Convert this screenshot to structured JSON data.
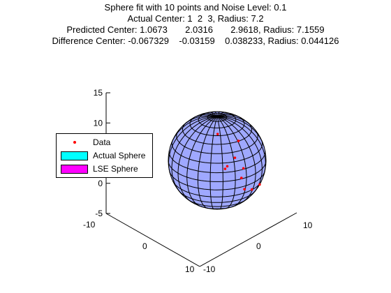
{
  "title_lines": [
    "Sphere fit with 10 points and Noise Level: 0.1",
    "Actual Center: 1  2  3, Radius: 7.2",
    "Predicted Center: 1.0673       2.0316       2.9618, Radius: 7.1559",
    "Difference Center: -0.067329    -0.03159    0.038233, Radius: 0.044126"
  ],
  "chart_data": {
    "type": "scatter",
    "projection": "3d",
    "z_ticks": [
      "-5",
      "0",
      "5",
      "10",
      "15"
    ],
    "z_tick_values": [
      -5,
      0,
      5,
      10,
      15
    ],
    "x_ticks": [
      "-10",
      "0",
      "10"
    ],
    "y_ticks": [
      "10",
      "0",
      "-10"
    ],
    "zlim": [
      -5,
      15
    ],
    "grid": false,
    "legend_position": "left",
    "legend": [
      {
        "label": "Data",
        "marker": "dot",
        "color": "#ff0000"
      },
      {
        "label": "Actual Sphere",
        "marker": "patch",
        "color": "#00ffff"
      },
      {
        "label": "LSE Sphere",
        "marker": "patch",
        "color": "#ff00ff"
      }
    ],
    "sphere_face_color": "#9fa8ff",
    "sphere_edge_color": "#000000",
    "data_point_color": "#ff0000",
    "sphere": {
      "center": [
        1,
        2,
        3
      ],
      "radius": 7.2
    }
  }
}
